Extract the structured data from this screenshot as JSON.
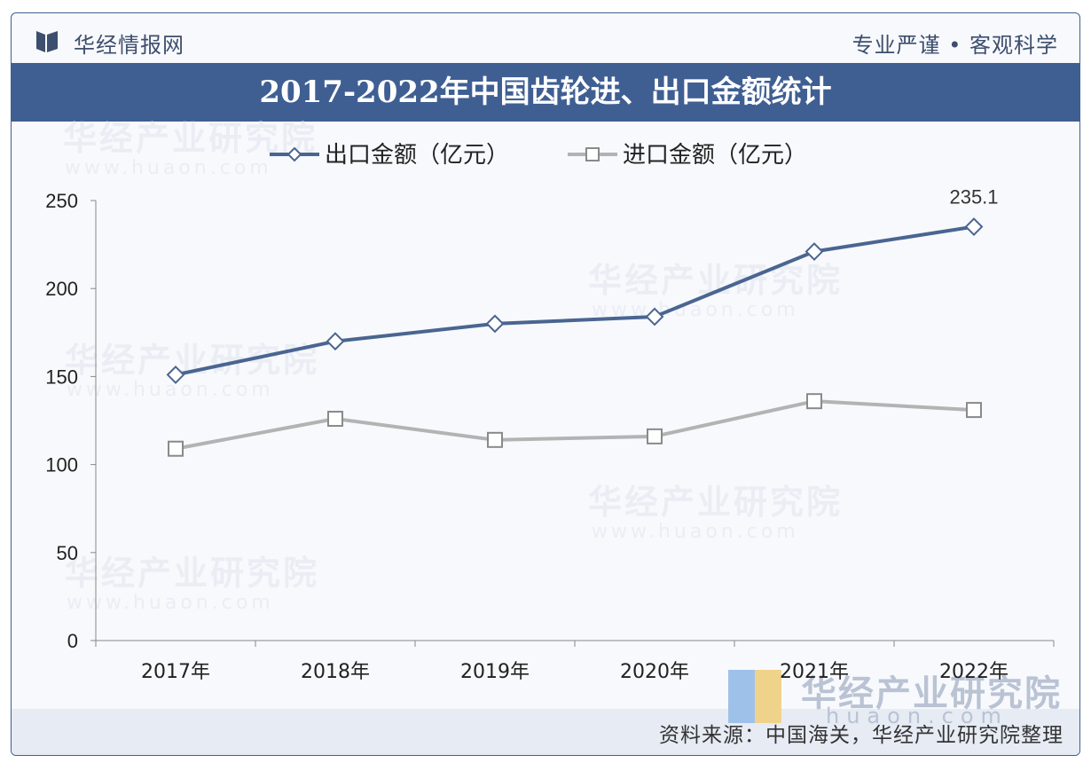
{
  "header": {
    "brand": "华经情报网",
    "slogan": "专业严谨 • 客观科学"
  },
  "footer": {
    "source": "资料来源：中国海关，华经产业研究院整理"
  },
  "watermark": {
    "text": "华经产业研究院",
    "url": "www.huaon.com",
    "url_spaced": "huaon.com"
  },
  "colors": {
    "export": "#4a6591",
    "import": "#b3b3b3",
    "title_bar": "#3f5f93"
  },
  "chart_data": {
    "type": "line",
    "title": "2017-2022年中国齿轮进、出口金额统计",
    "categories": [
      "2017年",
      "2018年",
      "2019年",
      "2020年",
      "2021年",
      "2022年"
    ],
    "series": [
      {
        "name": "出口金额（亿元）",
        "values": [
          151,
          170,
          180,
          184,
          221,
          235.1
        ],
        "marker": "diamond",
        "color": "#4a6591"
      },
      {
        "name": "进口金额（亿元）",
        "values": [
          109,
          126,
          114,
          116,
          136,
          131
        ],
        "marker": "square",
        "color": "#b3b3b3"
      }
    ],
    "data_labels": [
      {
        "series": 0,
        "index": 5,
        "text": "235.1"
      }
    ],
    "ylim": [
      0,
      250
    ],
    "yticks": [
      0,
      50,
      100,
      150,
      200,
      250
    ],
    "grid": false,
    "legend": "top"
  }
}
